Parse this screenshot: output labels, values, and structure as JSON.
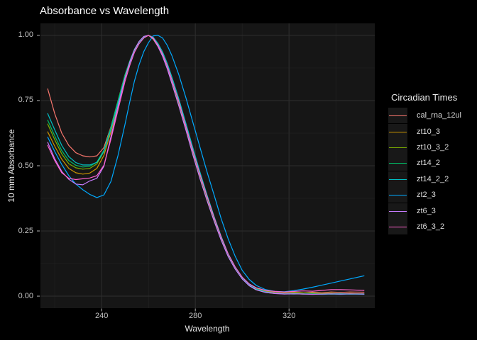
{
  "title": "Absorbance vs Wavelength",
  "colors": {
    "background": "#000000",
    "panel": "#161616",
    "grid_major": "#2c2c2c",
    "grid_minor": "#222222",
    "tick_mark": "#b5b5b5",
    "tick_text": "#c2c2c2",
    "axis_title_text": "#e6e6e6",
    "title_text": "#ffffff",
    "legend_text": "#dcdcdc",
    "legend_key_bg": "#181818"
  },
  "legend": {
    "title": "Circadian Times",
    "items": [
      {
        "label": "cal_rna_12ul",
        "color": "#F8766D"
      },
      {
        "label": "zt10_3",
        "color": "#CD9600"
      },
      {
        "label": "zt10_3_2",
        "color": "#7CAE00"
      },
      {
        "label": "zt14_2",
        "color": "#00BE67"
      },
      {
        "label": "zt14_2_2",
        "color": "#00BFC4"
      },
      {
        "label": "zt2_3",
        "color": "#00A9FF"
      },
      {
        "label": "zt6_3",
        "color": "#C77CFF"
      },
      {
        "label": "zt6_3_2",
        "color": "#FF61CC"
      }
    ]
  },
  "chart_data": {
    "type": "line",
    "title": "Absorbance vs Wavelength",
    "xlabel": "Wavelength",
    "ylabel": "10 mm Absorbance",
    "legend_title": "Circadian Times",
    "legend_position": "right",
    "grid": true,
    "xlim": [
      213.9,
      356.6
    ],
    "ylim": [
      -0.046,
      1.046
    ],
    "x_ticks": [
      240,
      280,
      320
    ],
    "x_tick_labels": [
      "240",
      "280",
      "320"
    ],
    "x_minor_ticks": [
      220,
      260,
      300,
      340
    ],
    "y_ticks": [
      0,
      0.25,
      0.5,
      0.75,
      1
    ],
    "y_tick_labels": [
      "0.00",
      "0.25",
      "0.50",
      "0.75",
      "1.00"
    ],
    "y_minor_ticks": [
      0.125,
      0.375,
      0.625,
      0.875
    ],
    "x": [
      217,
      220,
      223,
      226,
      229,
      232,
      235,
      238,
      241,
      244,
      247,
      250,
      252,
      254,
      256,
      258,
      260,
      262,
      264,
      266,
      268,
      270,
      273,
      276,
      279,
      282,
      285,
      288,
      291,
      294,
      297,
      300,
      303,
      306,
      310,
      314,
      318,
      322,
      326,
      330,
      334,
      338,
      342,
      346,
      352
    ],
    "series": [
      {
        "name": "cal_rna_12ul",
        "color": "#F8766D",
        "values": [
          0.795,
          0.7,
          0.625,
          0.578,
          0.55,
          0.538,
          0.534,
          0.538,
          0.57,
          0.65,
          0.75,
          0.85,
          0.9,
          0.945,
          0.975,
          0.995,
          1.0,
          0.99,
          0.965,
          0.93,
          0.885,
          0.83,
          0.745,
          0.65,
          0.555,
          0.465,
          0.38,
          0.3,
          0.225,
          0.16,
          0.11,
          0.07,
          0.045,
          0.028,
          0.018,
          0.015,
          0.013,
          0.014,
          0.012,
          0.015,
          0.013,
          0.016,
          0.014,
          0.016,
          0.015
        ]
      },
      {
        "name": "zt10_3",
        "color": "#CD9600",
        "values": [
          0.63,
          0.575,
          0.525,
          0.49,
          0.473,
          0.468,
          0.472,
          0.49,
          0.54,
          0.63,
          0.735,
          0.838,
          0.892,
          0.94,
          0.97,
          0.99,
          1.0,
          0.985,
          0.958,
          0.922,
          0.878,
          0.822,
          0.738,
          0.645,
          0.55,
          0.46,
          0.375,
          0.295,
          0.22,
          0.157,
          0.107,
          0.067,
          0.04,
          0.024,
          0.014,
          0.01,
          0.009,
          0.01,
          0.008,
          0.009,
          0.01,
          0.008,
          0.009,
          0.01,
          0.009
        ]
      },
      {
        "name": "zt10_3_2",
        "color": "#7CAE00",
        "values": [
          0.66,
          0.6,
          0.545,
          0.508,
          0.492,
          0.487,
          0.49,
          0.507,
          0.555,
          0.645,
          0.748,
          0.848,
          0.9,
          0.945,
          0.975,
          0.995,
          1.0,
          0.99,
          0.962,
          0.927,
          0.88,
          0.825,
          0.74,
          0.648,
          0.553,
          0.463,
          0.378,
          0.298,
          0.223,
          0.158,
          0.108,
          0.072,
          0.046,
          0.03,
          0.02,
          0.017,
          0.015,
          0.016,
          0.013,
          0.012,
          0.01,
          0.011,
          0.009,
          0.01,
          0.008
        ]
      },
      {
        "name": "zt14_2",
        "color": "#00BE67",
        "values": [
          0.675,
          0.615,
          0.558,
          0.52,
          0.502,
          0.495,
          0.498,
          0.514,
          0.56,
          0.648,
          0.75,
          0.85,
          0.902,
          0.947,
          0.976,
          0.995,
          1.0,
          0.99,
          0.963,
          0.928,
          0.882,
          0.827,
          0.743,
          0.65,
          0.555,
          0.465,
          0.38,
          0.3,
          0.224,
          0.159,
          0.108,
          0.069,
          0.042,
          0.026,
          0.015,
          0.011,
          0.009,
          0.01,
          0.008,
          0.009,
          0.008,
          0.009,
          0.01,
          0.008,
          0.009
        ]
      },
      {
        "name": "zt14_2_2",
        "color": "#00BFC4",
        "values": [
          0.7,
          0.638,
          0.578,
          0.535,
          0.512,
          0.503,
          0.503,
          0.513,
          0.555,
          0.64,
          0.74,
          0.84,
          0.893,
          0.938,
          0.97,
          0.992,
          1.0,
          0.993,
          0.97,
          0.937,
          0.893,
          0.84,
          0.755,
          0.662,
          0.567,
          0.475,
          0.388,
          0.306,
          0.23,
          0.163,
          0.112,
          0.072,
          0.044,
          0.027,
          0.016,
          0.011,
          0.009,
          0.008,
          0.009,
          0.008,
          0.007,
          0.008,
          0.007,
          0.008,
          0.007
        ]
      },
      {
        "name": "zt2_3",
        "color": "#00A9FF",
        "values": [
          0.61,
          0.555,
          0.505,
          0.462,
          0.43,
          0.408,
          0.39,
          0.378,
          0.388,
          0.44,
          0.54,
          0.66,
          0.745,
          0.825,
          0.888,
          0.938,
          0.972,
          0.998,
          1.0,
          0.99,
          0.962,
          0.922,
          0.848,
          0.76,
          0.665,
          0.57,
          0.476,
          0.388,
          0.298,
          0.22,
          0.153,
          0.099,
          0.064,
          0.041,
          0.025,
          0.018,
          0.017,
          0.021,
          0.027,
          0.034,
          0.042,
          0.05,
          0.058,
          0.066,
          0.078
        ]
      },
      {
        "name": "zt6_3",
        "color": "#C77CFF",
        "values": [
          0.59,
          0.527,
          0.478,
          0.448,
          0.43,
          0.427,
          0.442,
          0.452,
          0.498,
          0.612,
          0.728,
          0.838,
          0.898,
          0.945,
          0.977,
          0.996,
          1.0,
          0.987,
          0.958,
          0.92,
          0.872,
          0.815,
          0.728,
          0.636,
          0.54,
          0.45,
          0.366,
          0.288,
          0.215,
          0.152,
          0.104,
          0.066,
          0.04,
          0.024,
          0.014,
          0.01,
          0.008,
          0.009,
          0.008,
          0.007,
          0.008,
          0.009,
          0.008,
          0.009,
          0.008
        ]
      },
      {
        "name": "zt6_3_2",
        "color": "#FF61CC",
        "values": [
          0.578,
          0.52,
          0.473,
          0.452,
          0.447,
          0.45,
          0.453,
          0.462,
          0.502,
          0.602,
          0.715,
          0.825,
          0.885,
          0.935,
          0.968,
          0.99,
          1.0,
          0.99,
          0.963,
          0.928,
          0.883,
          0.828,
          0.744,
          0.65,
          0.556,
          0.466,
          0.382,
          0.302,
          0.227,
          0.162,
          0.112,
          0.073,
          0.047,
          0.032,
          0.022,
          0.018,
          0.016,
          0.018,
          0.02,
          0.019,
          0.022,
          0.025,
          0.025,
          0.024,
          0.022
        ]
      }
    ]
  }
}
